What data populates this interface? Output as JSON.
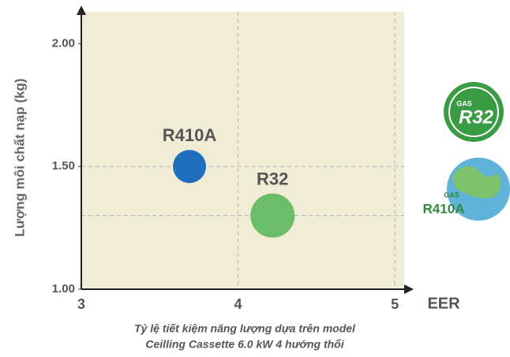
{
  "chart_data": {
    "type": "scatter",
    "y_label": "Lượng môi chất nạp (kg)",
    "x_label": "EER",
    "caption": [
      "Tỷ lệ tiết kiệm năng lượng dựa trên model",
      "Ceilling Cassette 6.0 kW 4 hướng thổi"
    ],
    "series": [
      {
        "name": "R410A",
        "color": "#1f6fbf",
        "x": [
          3.69
        ],
        "values": [
          1.5
        ]
      },
      {
        "name": "R32",
        "color": "#6cbd6a",
        "x": [
          4.22
        ],
        "values": [
          1.3
        ]
      }
    ],
    "xlim": [
      3,
      5.06
    ],
    "xticks": [
      3,
      4,
      5
    ],
    "ylim": [
      1,
      2.13
    ],
    "yticks": [
      {
        "value": 1,
        "label": "1.00"
      },
      {
        "value": 1.5,
        "label": "1.50"
      },
      {
        "value": 2,
        "label": "2.00"
      }
    ],
    "background": "#f1ecd6",
    "grid": true,
    "badges": [
      {
        "top": "GAS",
        "main": "R32"
      },
      {
        "top": "GAS",
        "main": "R410A"
      }
    ]
  }
}
